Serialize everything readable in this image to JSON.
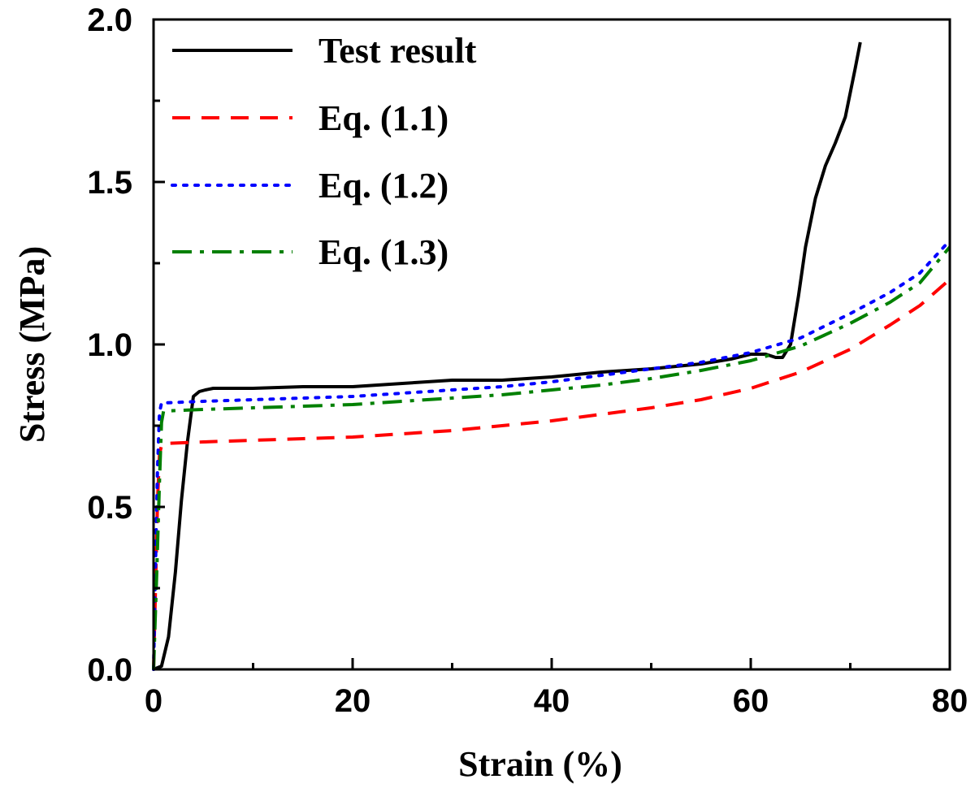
{
  "chart_data": {
    "type": "line",
    "xlabel": "Strain (%)",
    "ylabel": "Stress (MPa)",
    "xlim": [
      0,
      80
    ],
    "ylim": [
      0,
      2.0
    ],
    "xticks": [
      0,
      20,
      40,
      60,
      80
    ],
    "yticks": [
      0.0,
      0.5,
      1.0,
      1.5,
      2.0
    ],
    "xtick_labels": [
      "0",
      "20",
      "40",
      "60",
      "80"
    ],
    "ytick_labels": [
      "0.0",
      "0.5",
      "1.0",
      "1.5",
      "2.0"
    ],
    "grid": false,
    "legend_position": "top-left",
    "series": [
      {
        "name": "Test result",
        "color": "#000000",
        "style": "solid",
        "x": [
          0,
          0.8,
          1.5,
          2.2,
          2.8,
          3.4,
          4.0,
          4.6,
          5.2,
          6,
          10,
          15,
          20,
          25,
          30,
          35,
          40,
          45,
          50,
          55,
          58,
          60,
          61.5,
          62.5,
          63.2,
          64.0,
          64.8,
          65.5,
          66.5,
          67.5,
          68.5,
          69.5,
          70.5,
          71.0
        ],
        "y": [
          0,
          0.01,
          0.1,
          0.3,
          0.52,
          0.7,
          0.84,
          0.855,
          0.86,
          0.865,
          0.865,
          0.87,
          0.87,
          0.88,
          0.89,
          0.89,
          0.9,
          0.915,
          0.925,
          0.94,
          0.955,
          0.97,
          0.97,
          0.96,
          0.96,
          1.0,
          1.15,
          1.3,
          1.45,
          1.55,
          1.62,
          1.7,
          1.85,
          1.93
        ]
      },
      {
        "name": "Eq. (1.1)",
        "color": "#ff0000",
        "style": "dashed",
        "x": [
          0,
          0.2,
          0.4,
          0.6,
          0.8,
          1,
          5,
          10,
          15,
          20,
          25,
          30,
          35,
          40,
          45,
          50,
          55,
          60,
          65,
          70,
          74,
          77,
          80
        ],
        "y": [
          0,
          0.25,
          0.52,
          0.66,
          0.69,
          0.695,
          0.7,
          0.705,
          0.71,
          0.715,
          0.725,
          0.735,
          0.75,
          0.765,
          0.785,
          0.805,
          0.83,
          0.865,
          0.915,
          0.985,
          1.06,
          1.12,
          1.2
        ]
      },
      {
        "name": "Eq. (1.2)",
        "color": "#0000ff",
        "style": "dotted",
        "x": [
          0,
          0.2,
          0.4,
          0.6,
          0.8,
          1,
          5,
          10,
          15,
          20,
          25,
          30,
          35,
          40,
          45,
          50,
          55,
          60,
          65,
          70,
          74,
          77,
          80
        ],
        "y": [
          0,
          0.32,
          0.62,
          0.79,
          0.82,
          0.82,
          0.825,
          0.83,
          0.835,
          0.84,
          0.85,
          0.86,
          0.87,
          0.885,
          0.905,
          0.925,
          0.945,
          0.975,
          1.02,
          1.095,
          1.16,
          1.22,
          1.32
        ]
      },
      {
        "name": "Eq. (1.3)",
        "color": "#008000",
        "style": "dashdot",
        "x": [
          0,
          0.3,
          0.6,
          0.8,
          1,
          5,
          10,
          15,
          20,
          25,
          30,
          35,
          40,
          45,
          50,
          55,
          60,
          65,
          70,
          74,
          77,
          80
        ],
        "y": [
          0,
          0.28,
          0.58,
          0.76,
          0.795,
          0.8,
          0.805,
          0.81,
          0.815,
          0.825,
          0.835,
          0.845,
          0.86,
          0.875,
          0.895,
          0.92,
          0.95,
          0.995,
          1.065,
          1.13,
          1.19,
          1.3
        ]
      }
    ]
  }
}
